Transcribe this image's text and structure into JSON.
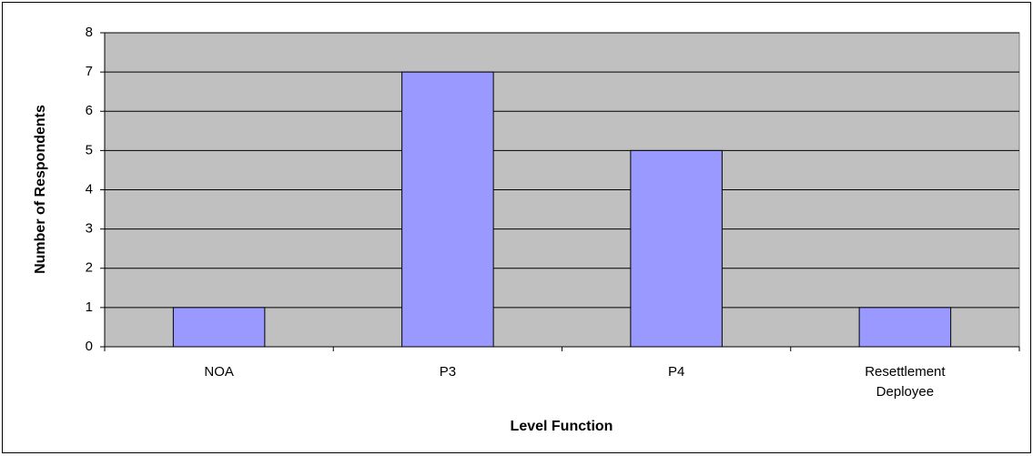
{
  "chart_data": {
    "type": "bar",
    "x_label": "Level Function",
    "y_label": "Number of Respondents",
    "categories": [
      "NOA",
      "P3",
      "P4",
      "Resettlement Deployee"
    ],
    "values": [
      1,
      7,
      5,
      1
    ],
    "color": "#9999ff",
    "ylim": [
      0,
      8
    ],
    "yticks": [
      0,
      1,
      2,
      3,
      4,
      5,
      6,
      7,
      8
    ],
    "grid": true
  }
}
